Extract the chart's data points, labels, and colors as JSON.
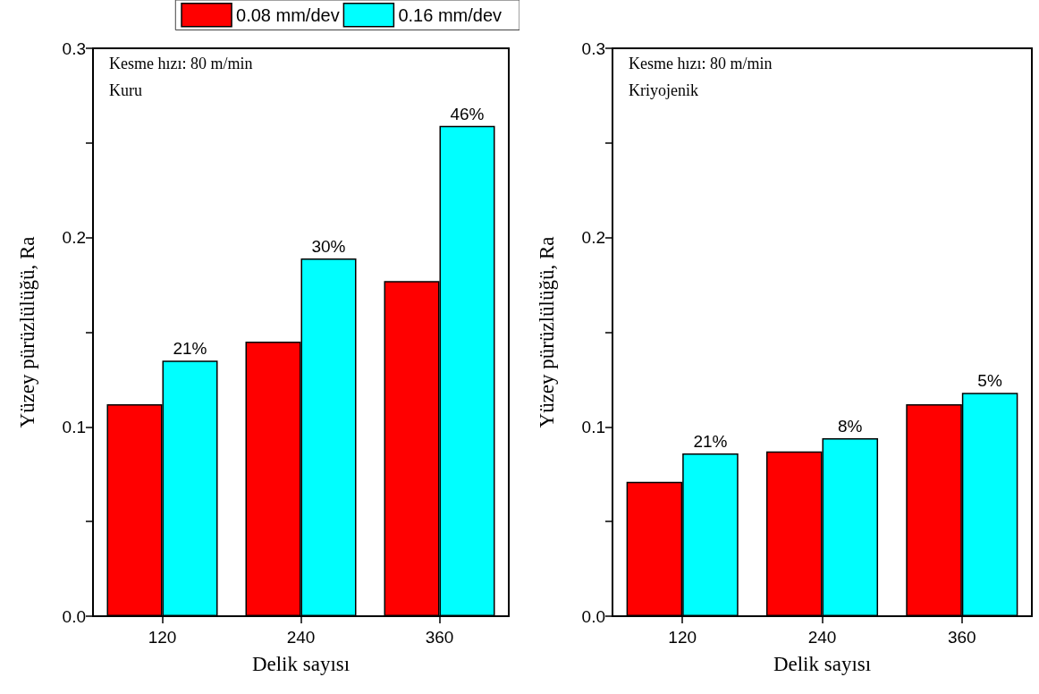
{
  "chart_data": [
    {
      "type": "bar",
      "xlabel": "Delik sayısı",
      "ylabel": "Yüzey pürüzlülüğü, Ra",
      "annotations": [
        "Kesme hızı: 80 m/min",
        "Kuru",
        {
          "text": "21%",
          "x": "120",
          "y": 0.135
        },
        {
          "text": "30%",
          "x": "240",
          "y": 0.189
        },
        {
          "text": "46%",
          "x": "360",
          "y": 0.259
        }
      ],
      "categories": [
        "120",
        "240",
        "360"
      ],
      "series": [
        {
          "name": "0.08 mm/dev",
          "color": "#ff0000",
          "values": [
            0.112,
            0.145,
            0.177
          ]
        },
        {
          "name": "0.16 mm/dev",
          "color": "#00ffff",
          "values": [
            0.135,
            0.189,
            0.259
          ]
        }
      ],
      "ylim": [
        0,
        0.3
      ],
      "yticks": [
        {
          "value": 0,
          "label": "0.0"
        },
        {
          "value": 0.05,
          "label": null
        },
        {
          "value": 0.1,
          "label": "0.1"
        },
        {
          "value": 0.15,
          "label": null
        },
        {
          "value": 0.2,
          "label": "0.2"
        },
        {
          "value": 0.25,
          "label": null
        },
        {
          "value": 0.3,
          "label": "0.3"
        }
      ],
      "grid": false,
      "legend": "top right"
    },
    {
      "type": "bar",
      "xlabel": "Delik sayısı",
      "ylabel": "Yüzey pürüzlülüğü, Ra",
      "annotations": [
        "Kesme hızı: 80 m/min",
        "Kriyojenik",
        {
          "text": "21%",
          "x": "120",
          "y": 0.086
        },
        {
          "text": "8%",
          "x": "240",
          "y": 0.094
        },
        {
          "text": "5%",
          "x": "360",
          "y": 0.118
        }
      ],
      "categories": [
        "120",
        "240",
        "360"
      ],
      "series": [
        {
          "color": "#ff0000",
          "values": [
            0.071,
            0.087,
            0.112
          ]
        },
        {
          "color": "#00ffff",
          "values": [
            0.086,
            0.094,
            0.118
          ]
        }
      ],
      "ylim": [
        0,
        0.3
      ],
      "yticks": [
        {
          "value": 0,
          "label": "0.0"
        },
        {
          "value": 0.05,
          "label": null
        },
        {
          "value": 0.1,
          "label": "0.1"
        },
        {
          "value": 0.15,
          "label": null
        },
        {
          "value": 0.2,
          "label": "0.2"
        },
        {
          "value": 0.25,
          "label": null
        },
        {
          "value": 0.3,
          "label": "0.3"
        }
      ],
      "grid": false,
      "legend": false
    }
  ]
}
